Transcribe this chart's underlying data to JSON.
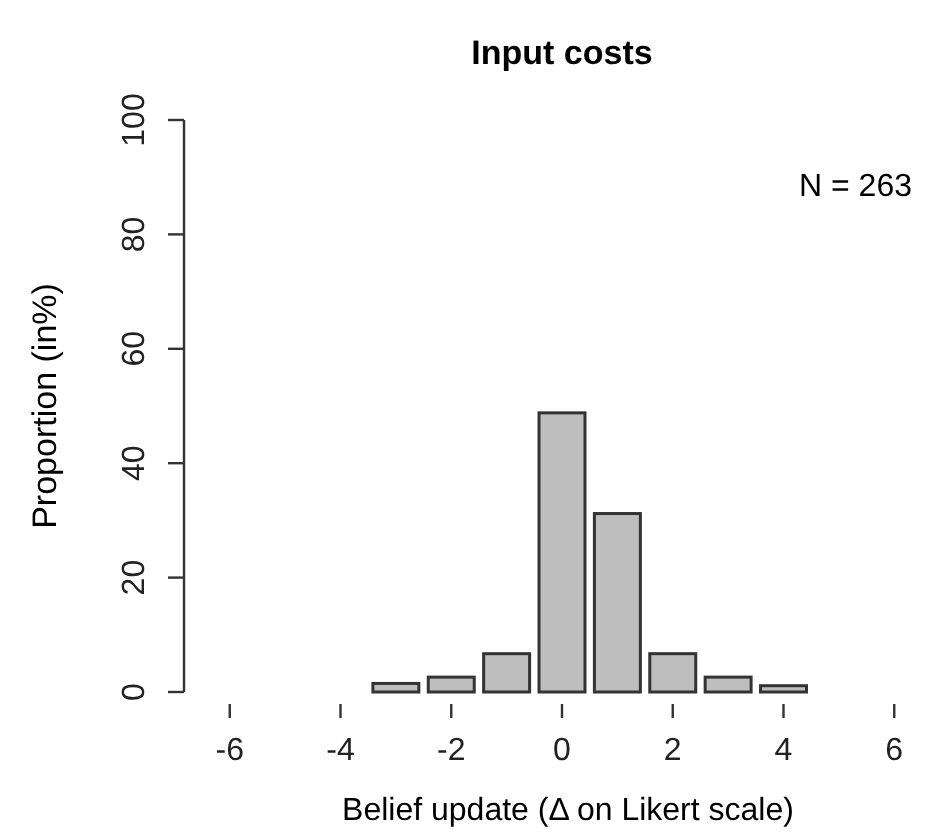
{
  "chart_data": {
    "type": "bar",
    "title": "Input costs",
    "xlabel": "Belief update (Δ on Likert scale)",
    "ylabel": "Proportion (in%)",
    "categories": [
      "-6",
      null,
      "-4",
      null,
      "-2",
      null,
      "0",
      null,
      "2",
      null,
      "4",
      null,
      "6"
    ],
    "values": [
      0,
      0,
      0,
      1.5,
      2.6,
      6.7,
      48.8,
      31.2,
      6.7,
      2.6,
      1.1,
      0,
      0
    ],
    "color": "#bebebe",
    "ylim": [
      0,
      100
    ],
    "yticks": [
      0,
      20,
      40,
      60,
      80,
      100
    ],
    "annotations": [
      "N = 263"
    ]
  }
}
